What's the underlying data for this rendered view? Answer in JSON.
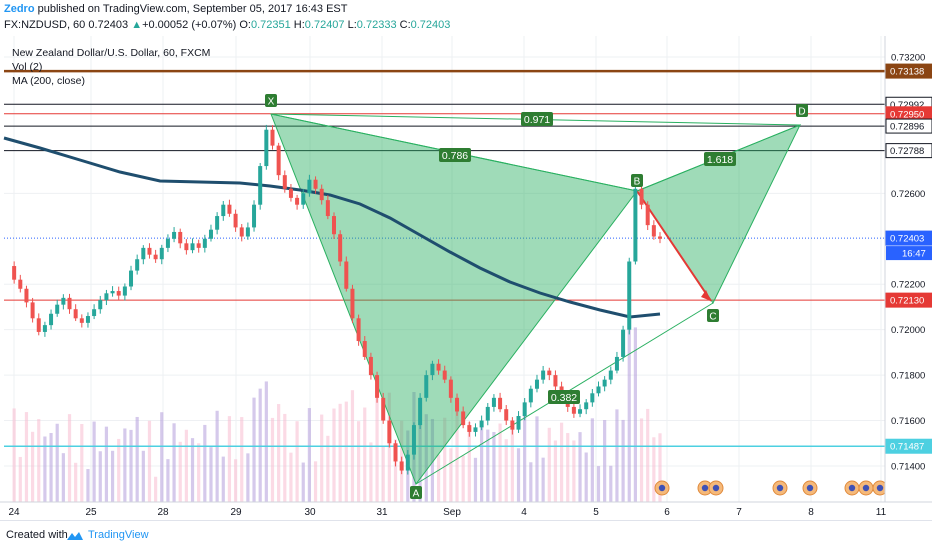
{
  "header": {
    "author": "Zedro",
    "published": "published on TradingView.com, September 05, 2017 16:43 EST",
    "symbol_line_prefix": "FX:NZDUSD, 60",
    "last": "0.72403",
    "change": "+0.00052 (+0.07%)",
    "o_label": "O:",
    "o": "0.72351",
    "h_label": "H:",
    "h": "0.72407",
    "l_label": "L:",
    "l": "0.72333",
    "c_label": "C:",
    "c": "0.72403"
  },
  "legend": {
    "title": "New Zealand Dollar/U.S. Dollar, 60, FXCM",
    "vol": "Vol (2)",
    "ma": "MA (200, close)"
  },
  "footer": {
    "created": "Created with",
    "brand": "TradingView"
  },
  "colors": {
    "up": "#26a69a",
    "down": "#ef5350",
    "pattern_fill": "#2ab061",
    "ma": "#1f4e6e",
    "brown_line": "#8b4513",
    "red_line": "#e53935",
    "cyan_line": "#4dd0e1",
    "last_price": "#2962ff"
  },
  "chart_data": {
    "type": "candlestick",
    "title": "New Zealand Dollar/U.S. Dollar, 60, FXCM",
    "ylim": [
      0.7132,
      0.7328
    ],
    "y_ticks": [
      "0.73200",
      "0.72600",
      "0.72200",
      "0.72000",
      "0.71800",
      "0.71600",
      "0.71400"
    ],
    "x_ticks": [
      "24",
      "25",
      "28",
      "29",
      "30",
      "31",
      "Sep",
      "4",
      "5",
      "6",
      "7",
      "8",
      "11"
    ],
    "price_labels": [
      {
        "value": 0.73138,
        "text": "0.73138",
        "color": "#8b4513"
      },
      {
        "value": 0.72992,
        "text": "0.72992",
        "color": "#131722"
      },
      {
        "value": 0.7295,
        "text": "0.72950",
        "color": "#e53935"
      },
      {
        "value": 0.72896,
        "text": "0.72896",
        "color": "#131722"
      },
      {
        "value": 0.72788,
        "text": "0.72788",
        "color": "#131722"
      },
      {
        "value": 0.72403,
        "text": "0.72403",
        "color": "#2962ff"
      },
      {
        "value": 0.7213,
        "text": "0.72130",
        "color": "#e53935"
      },
      {
        "value": 0.71487,
        "text": "0.71487",
        "color": "#4dd0e1"
      }
    ],
    "countdown": "16:47",
    "harmonic_points": [
      {
        "label": "X",
        "x": "29",
        "y": 0.72975
      },
      {
        "label": "A",
        "x": "31",
        "y": 0.71355
      },
      {
        "label": "B",
        "x": "5",
        "y": 0.72635
      },
      {
        "label": "C",
        "x": "6",
        "y": 0.7213
      },
      {
        "label": "D",
        "x": "7",
        "y": 0.7297
      }
    ],
    "ratios": [
      "0.786",
      "0.382",
      "1.618",
      "0.971"
    ],
    "price_series": [
      0.7228,
      0.7222,
      0.7218,
      0.7212,
      0.7205,
      0.7199,
      0.7202,
      0.7207,
      0.7211,
      0.7214,
      0.7209,
      0.7205,
      0.7203,
      0.7206,
      0.7209,
      0.7213,
      0.7216,
      0.7217,
      0.7215,
      0.7219,
      0.7226,
      0.7231,
      0.7236,
      0.7233,
      0.7231,
      0.7236,
      0.724,
      0.7243,
      0.7238,
      0.7235,
      0.7238,
      0.7236,
      0.724,
      0.7244,
      0.725,
      0.7255,
      0.7251,
      0.7245,
      0.7241,
      0.7245,
      0.7255,
      0.7272,
      0.7288,
      0.7281,
      0.7268,
      0.7262,
      0.7258,
      0.7255,
      0.726,
      0.7266,
      0.7262,
      0.7257,
      0.725,
      0.7242,
      0.723,
      0.7218,
      0.7205,
      0.7195,
      0.7188,
      0.718,
      0.717,
      0.716,
      0.715,
      0.7142,
      0.7138,
      0.7145,
      0.7158,
      0.717,
      0.718,
      0.7185,
      0.7182,
      0.7178,
      0.717,
      0.7164,
      0.7158,
      0.7155,
      0.7157,
      0.716,
      0.7166,
      0.717,
      0.7165,
      0.716,
      0.7156,
      0.7162,
      0.7168,
      0.7174,
      0.7178,
      0.7182,
      0.718,
      0.7175,
      0.717,
      0.7166,
      0.7163,
      0.7165,
      0.7168,
      0.7172,
      0.7175,
      0.7178,
      0.7182,
      0.7188,
      0.72,
      0.723,
      0.7262,
      0.7255,
      0.7246,
      0.7241,
      0.724
    ]
  }
}
